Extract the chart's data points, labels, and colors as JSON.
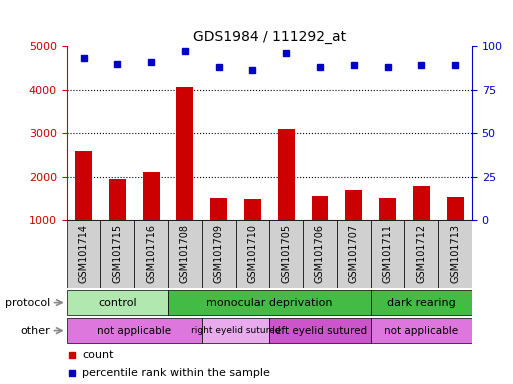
{
  "title": "GDS1984 / 111292_at",
  "samples": [
    "GSM101714",
    "GSM101715",
    "GSM101716",
    "GSM101708",
    "GSM101709",
    "GSM101710",
    "GSM101705",
    "GSM101706",
    "GSM101707",
    "GSM101711",
    "GSM101712",
    "GSM101713"
  ],
  "counts": [
    2600,
    1950,
    2100,
    4050,
    1520,
    1500,
    3100,
    1550,
    1700,
    1520,
    1780,
    1530
  ],
  "percentile_ranks": [
    93,
    90,
    91,
    97,
    88,
    86,
    96,
    88,
    89,
    88,
    89,
    89
  ],
  "ylim_left": [
    1000,
    5000
  ],
  "ylim_right": [
    0,
    100
  ],
  "yticks_left": [
    1000,
    2000,
    3000,
    4000,
    5000
  ],
  "yticks_right": [
    0,
    25,
    50,
    75,
    100
  ],
  "bar_color": "#cc0000",
  "dot_color": "#0000cc",
  "bar_width": 0.5,
  "protocol_groups": [
    {
      "label": "control",
      "start": 0,
      "end": 3,
      "color": "#b0e8b0"
    },
    {
      "label": "monocular deprivation",
      "start": 3,
      "end": 9,
      "color": "#44bb44"
    },
    {
      "label": "dark rearing",
      "start": 9,
      "end": 12,
      "color": "#44bb44"
    }
  ],
  "other_groups": [
    {
      "label": "not applicable",
      "start": 0,
      "end": 4,
      "color": "#dd77dd"
    },
    {
      "label": "right eyelid sutured",
      "start": 4,
      "end": 6,
      "color": "#eaaaee"
    },
    {
      "label": "left eyelid sutured",
      "start": 6,
      "end": 9,
      "color": "#cc55cc"
    },
    {
      "label": "not applicable",
      "start": 9,
      "end": 12,
      "color": "#dd77dd"
    }
  ],
  "protocol_label": "protocol",
  "other_label": "other",
  "legend_count_label": "count",
  "legend_pct_label": "percentile rank within the sample",
  "title_color": "#000000",
  "left_axis_color": "#cc0000",
  "right_axis_color": "#0000cc",
  "grid_lines": [
    2000,
    3000,
    4000
  ],
  "xticklabel_bg": "#d0d0d0"
}
